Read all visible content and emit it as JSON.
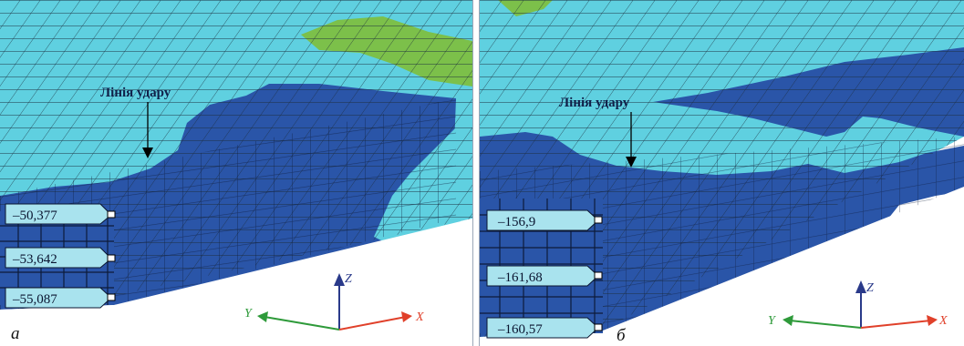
{
  "panels": [
    {
      "letter": "а",
      "annotation": "Лінія удару",
      "tags": [
        "–50,377",
        "–53,642",
        "–55,087"
      ],
      "axes": {
        "x": "X",
        "y": "Y",
        "z": "Z"
      }
    },
    {
      "letter": "б",
      "annotation": "Лінія удару",
      "tags": [
        "–156,9",
        "–161,68",
        "–160,57"
      ],
      "axes": {
        "x": "X",
        "y": "Y",
        "z": "Z"
      }
    }
  ],
  "colors": {
    "light_cyan": "#5fd0e0",
    "dark_blue": "#2a55a8",
    "green": "#7cc04a",
    "tag_fill": "#a9e3ee",
    "axis_x": "#e0402a",
    "axis_y": "#2e9a3a",
    "axis_z": "#2a3a8a"
  }
}
